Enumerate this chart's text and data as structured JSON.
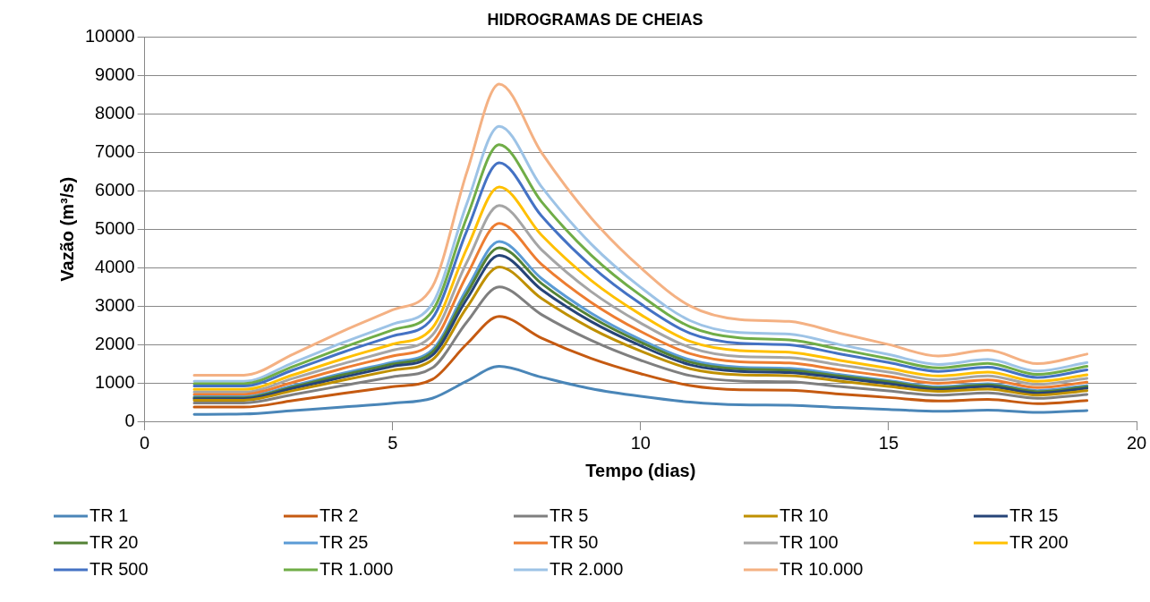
{
  "chart_data": {
    "type": "line",
    "title": "HIDROGRAMAS DE CHEIAS",
    "xlabel": "Tempo (dias)",
    "ylabel": "Vazão (m³/s)",
    "x": [
      1,
      2,
      3,
      4,
      5,
      5.8,
      6.5,
      7.15,
      8,
      9,
      10,
      11,
      12,
      13,
      14,
      15,
      16,
      17,
      18,
      19
    ],
    "xlim": [
      0,
      20
    ],
    "xticks": [
      0,
      5,
      10,
      15,
      20
    ],
    "ylim": [
      0,
      10000
    ],
    "yticks": [
      0,
      1000,
      2000,
      3000,
      4000,
      5000,
      6000,
      7000,
      8000,
      9000,
      10000
    ],
    "grid": "y",
    "legend": "bottom",
    "marker": "none",
    "line_style": "solid",
    "series": [
      {
        "name": "TR 1",
        "color": "#4a86b8",
        "values": [
          180,
          190,
          280,
          370,
          470,
          600,
          1050,
          1430,
          1150,
          850,
          650,
          500,
          430,
          420,
          360,
          310,
          260,
          290,
          230,
          280
        ]
      },
      {
        "name": "TR 2",
        "color": "#c55a11",
        "values": [
          370,
          370,
          540,
          730,
          900,
          1090,
          2020,
          2730,
          2170,
          1640,
          1240,
          930,
          820,
          810,
          710,
          620,
          530,
          570,
          460,
          540
        ]
      },
      {
        "name": "TR 5",
        "color": "#7f7f7f",
        "values": [
          480,
          480,
          700,
          930,
          1160,
          1390,
          2590,
          3500,
          2780,
          2110,
          1590,
          1190,
          1050,
          1030,
          910,
          790,
          680,
          740,
          600,
          700
        ]
      },
      {
        "name": "TR 10",
        "color": "#bf9000",
        "values": [
          550,
          550,
          800,
          1070,
          1330,
          1600,
          2970,
          4020,
          3200,
          2420,
          1830,
          1370,
          1210,
          1190,
          1050,
          910,
          780,
          840,
          680,
          800
        ]
      },
      {
        "name": "TR 15",
        "color": "#264478",
        "values": [
          590,
          590,
          860,
          1150,
          1430,
          1720,
          3190,
          4320,
          3430,
          2600,
          1970,
          1470,
          1300,
          1270,
          1130,
          980,
          830,
          910,
          730,
          860
        ]
      },
      {
        "name": "TR 20",
        "color": "#548235",
        "values": [
          610,
          610,
          900,
          1210,
          1490,
          1800,
          3340,
          4520,
          3590,
          2720,
          2060,
          1540,
          1360,
          1330,
          1180,
          1030,
          870,
          950,
          770,
          900
        ]
      },
      {
        "name": "TR 25",
        "color": "#5b9bd5",
        "values": [
          640,
          640,
          930,
          1250,
          1540,
          1860,
          3460,
          4680,
          3720,
          2820,
          2130,
          1600,
          1410,
          1380,
          1220,
          1060,
          900,
          980,
          800,
          930
        ]
      },
      {
        "name": "TR 50",
        "color": "#ed7d31",
        "values": [
          700,
          700,
          1020,
          1380,
          1700,
          2050,
          3810,
          5150,
          4090,
          3100,
          2340,
          1760,
          1550,
          1520,
          1340,
          1170,
          990,
          1080,
          880,
          1020
        ]
      },
      {
        "name": "TR 100",
        "color": "#a5a5a5",
        "values": [
          760,
          760,
          1120,
          1500,
          1850,
          2240,
          4150,
          5620,
          4470,
          3380,
          2560,
          1920,
          1690,
          1660,
          1470,
          1280,
          1080,
          1180,
          960,
          1120
        ]
      },
      {
        "name": "TR 200",
        "color": "#ffc000",
        "values": [
          830,
          830,
          1210,
          1630,
          2010,
          2430,
          4510,
          6100,
          4850,
          3670,
          2780,
          2080,
          1840,
          1800,
          1590,
          1380,
          1180,
          1280,
          1040,
          1210
        ]
      },
      {
        "name": "TR 500",
        "color": "#4472c4",
        "values": [
          920,
          920,
          1340,
          1800,
          2220,
          2680,
          4970,
          6730,
          5350,
          4050,
          3060,
          2290,
          2030,
          1990,
          1760,
          1530,
          1300,
          1410,
          1140,
          1340
        ]
      },
      {
        "name": "TR 1.000",
        "color": "#70ad47",
        "values": [
          980,
          980,
          1430,
          1920,
          2380,
          2870,
          5320,
          7200,
          5720,
          4330,
          3280,
          2460,
          2170,
          2120,
          1880,
          1630,
          1390,
          1510,
          1220,
          1430
        ]
      },
      {
        "name": "TR 2.000",
        "color": "#9dc3e6",
        "values": [
          1040,
          1040,
          1530,
          2050,
          2530,
          3060,
          5680,
          7680,
          6110,
          4620,
          3490,
          2620,
          2310,
          2270,
          2000,
          1740,
          1480,
          1610,
          1310,
          1530
        ]
      },
      {
        "name": "TR 10.000",
        "color": "#f4b183",
        "values": [
          1200,
          1200,
          1750,
          2350,
          2900,
          3500,
          6500,
          8780,
          7000,
          5300,
          4000,
          3000,
          2650,
          2600,
          2300,
          2000,
          1700,
          1850,
          1500,
          1750
        ]
      }
    ]
  }
}
